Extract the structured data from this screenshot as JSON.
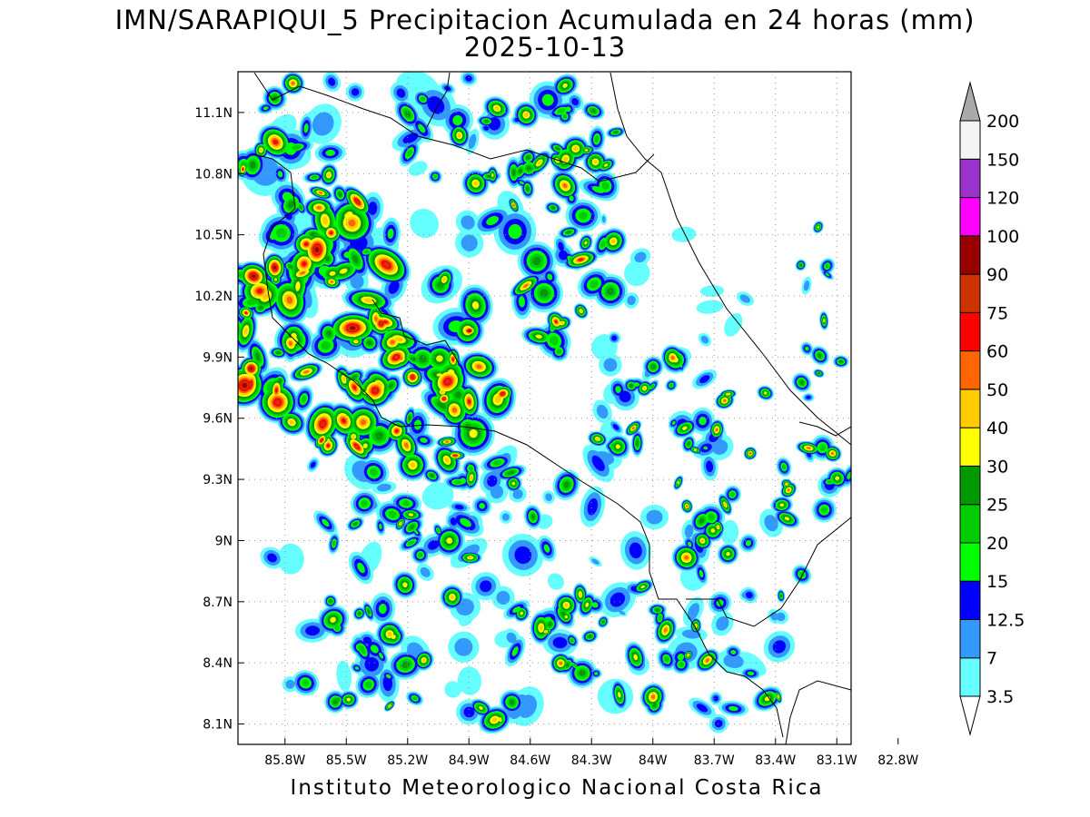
{
  "title": "IMN/SARAPIQUI_5 Precipitacion Acumulada en 24 horas (mm)",
  "date": "2025-10-13",
  "credit": "Instituto Meteorologico Nacional Costa Rica",
  "map": {
    "lon_range": [
      -86.03,
      -83.03
    ],
    "lat_range": [
      8.0,
      11.3
    ],
    "lon_ticks": [
      {
        "v": -85.8,
        "label": "85.8W"
      },
      {
        "v": -85.5,
        "label": "85.5W"
      },
      {
        "v": -85.2,
        "label": "85.2W"
      },
      {
        "v": -84.9,
        "label": "84.9W"
      },
      {
        "v": -84.6,
        "label": "84.6W"
      },
      {
        "v": -84.3,
        "label": "84.3W"
      },
      {
        "v": -84.0,
        "label": "84W"
      },
      {
        "v": -83.7,
        "label": "83.7W"
      },
      {
        "v": -83.4,
        "label": "83.4W"
      },
      {
        "v": -83.1,
        "label": "83.1W"
      },
      {
        "v": -82.8,
        "label": "82.8W"
      }
    ],
    "lat_ticks": [
      {
        "v": 11.1,
        "label": "11.1N"
      },
      {
        "v": 10.8,
        "label": "10.8N"
      },
      {
        "v": 10.5,
        "label": "10.5N"
      },
      {
        "v": 10.2,
        "label": "10.2N"
      },
      {
        "v": 9.9,
        "label": "9.9N"
      },
      {
        "v": 9.6,
        "label": "9.6N"
      },
      {
        "v": 9.3,
        "label": "9.3N"
      },
      {
        "v": 9.0,
        "label": "9N"
      },
      {
        "v": 8.7,
        "label": "8.7N"
      },
      {
        "v": 8.4,
        "label": "8.4N"
      },
      {
        "v": 8.1,
        "label": "8.1N"
      }
    ]
  },
  "legend": {
    "levels": [
      {
        "label": "3.5",
        "color": "#66ffff"
      },
      {
        "label": "7",
        "color": "#3399ff"
      },
      {
        "label": "12.5",
        "color": "#0000ff"
      },
      {
        "label": "15",
        "color": "#00ff00"
      },
      {
        "label": "20",
        "color": "#00cc00"
      },
      {
        "label": "25",
        "color": "#009900"
      },
      {
        "label": "30",
        "color": "#ffff00"
      },
      {
        "label": "40",
        "color": "#ffcc00"
      },
      {
        "label": "50",
        "color": "#ff6600"
      },
      {
        "label": "60",
        "color": "#ff0000"
      },
      {
        "label": "75",
        "color": "#cc3300"
      },
      {
        "label": "90",
        "color": "#990000"
      },
      {
        "label": "100",
        "color": "#ff00ff"
      },
      {
        "label": "120",
        "color": "#9933cc"
      },
      {
        "label": "150",
        "color": "#f5f5f5"
      },
      {
        "label": "200",
        "color": "#aaaaaa"
      }
    ],
    "below_color": "#ffffff"
  }
}
